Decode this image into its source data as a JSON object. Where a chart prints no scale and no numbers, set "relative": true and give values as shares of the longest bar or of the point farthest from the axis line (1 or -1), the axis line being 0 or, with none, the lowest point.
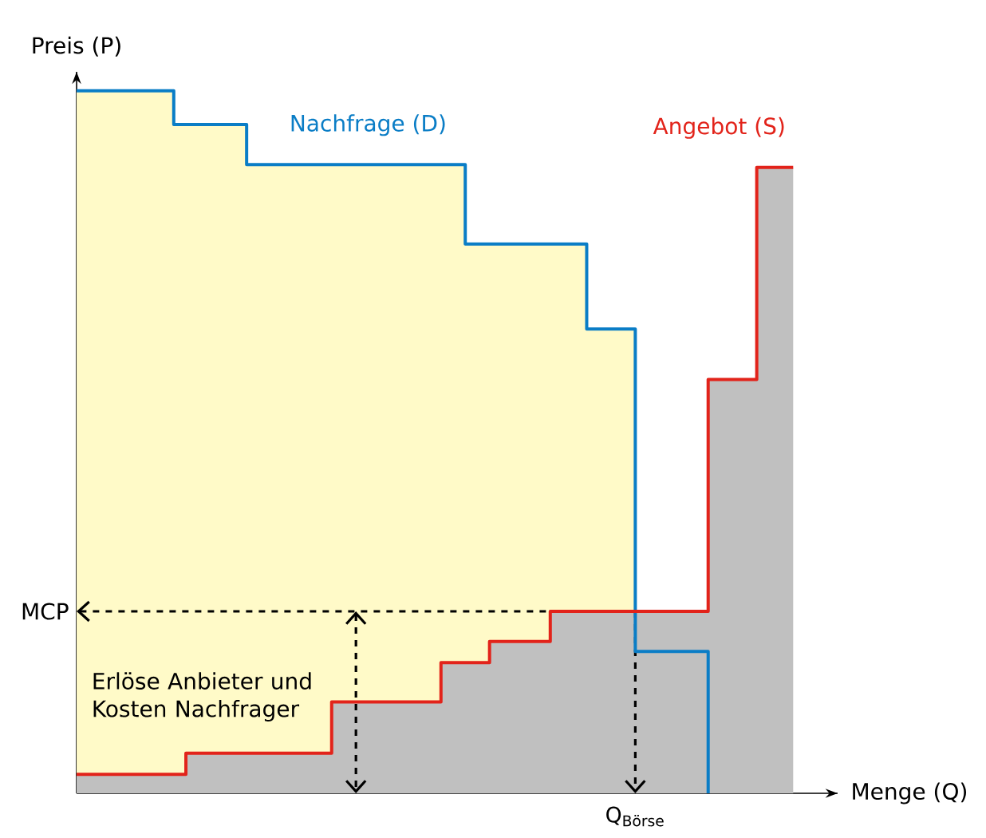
{
  "chart_data": {
    "type": "step",
    "relative": true,
    "xlabel": "Menge (Q)",
    "ylabel": "Preis (P)",
    "categories": [
      null,
      null,
      null,
      null,
      null,
      null,
      null,
      null,
      null,
      null,
      null,
      null,
      null,
      null,
      null,
      null,
      null,
      null,
      null,
      null,
      null,
      null,
      null,
      null,
      null,
      null,
      null,
      null,
      null,
      null,
      null,
      null,
      null,
      null,
      null,
      null,
      null,
      null,
      null,
      null,
      null,
      null,
      null,
      null,
      null,
      null,
      null,
      null,
      null,
      null,
      null,
      null,
      null,
      null,
      null,
      null,
      null,
      null,
      null,
      null
    ],
    "series": [
      {
        "name": "Nachfrage (D)",
        "color": "#0a7dc6",
        "values": [
          1,
          1,
          1,
          1,
          1,
          1,
          1,
          1,
          0.952,
          0.952,
          0.952,
          0.952,
          0.952,
          0.952,
          0.895,
          0.895,
          0.895,
          0.895,
          0.895,
          0.895,
          0.895,
          0.895,
          0.895,
          0.895,
          0.895,
          0.895,
          0.895,
          0.895,
          0.895,
          0.895,
          0.895,
          0.895,
          0.782,
          0.782,
          0.782,
          0.782,
          0.782,
          0.782,
          0.782,
          0.782,
          0.782,
          0.782,
          0.661,
          0.661,
          0.661,
          0.661,
          0.202,
          0.202,
          0.202,
          0.202,
          0.202,
          0.202,
          0,
          null,
          null,
          null,
          null,
          null,
          null,
          null
        ]
      },
      {
        "type": "area",
        "color": "#c0c0c0",
        "values": [
          0.027,
          0.027,
          0.027,
          0.027,
          0.027,
          0.027,
          0.027,
          0.027,
          0.027,
          0.057,
          0.057,
          0.057,
          0.057,
          0.057,
          0.057,
          0.057,
          0.057,
          0.057,
          0.057,
          0.057,
          0.057,
          0.13,
          0.13,
          0.13,
          0.13,
          0.13,
          0.13,
          0.13,
          0.13,
          0.13,
          0.186,
          0.186,
          0.186,
          0.186,
          0.216,
          0.216,
          0.216,
          0.216,
          0.216,
          0.259,
          0.259,
          0.259,
          0.259,
          0.259,
          0.259,
          0.259,
          0.259,
          0.259,
          0.259,
          0.259,
          0.259,
          0.259,
          0.589,
          0.589,
          0.589,
          0.589,
          0.891,
          0.891,
          0.891,
          0.891
        ]
      },
      {
        "name": "Angebot (S)",
        "color": "#e2231a",
        "values": [
          0.027,
          0.027,
          0.027,
          0.027,
          0.027,
          0.027,
          0.027,
          0.027,
          0.027,
          0.057,
          0.057,
          0.057,
          0.057,
          0.057,
          0.057,
          0.057,
          0.057,
          0.057,
          0.057,
          0.057,
          0.057,
          0.13,
          0.13,
          0.13,
          0.13,
          0.13,
          0.13,
          0.13,
          0.13,
          0.13,
          0.186,
          0.186,
          0.186,
          0.186,
          0.216,
          0.216,
          0.216,
          0.216,
          0.216,
          0.259,
          0.259,
          0.259,
          0.259,
          0.259,
          0.259,
          0.259,
          0.259,
          0.259,
          0.259,
          0.259,
          0.259,
          0.259,
          0.589,
          0.589,
          0.589,
          0.589,
          0.891,
          0.891,
          0.891,
          0.891
        ]
      }
    ],
    "ref_lines": [
      {
        "axis": "y",
        "value": 0.259,
        "label": "MCP",
        "line_style": "dashed",
        "color": "#000000"
      }
    ],
    "annotations": [
      "Erlöse Anbieter und Kosten Nachfrager",
      "Q$_{Börse}$"
    ]
  }
}
